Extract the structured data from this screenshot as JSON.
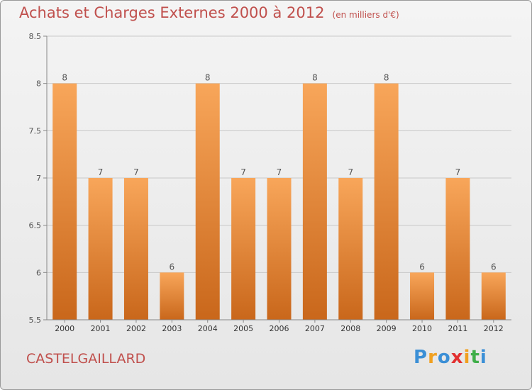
{
  "title": "Achats et Charges Externes 2000 à 2012",
  "subtitle": "(en milliers d'€)",
  "commune": "CASTELGAILLARD",
  "logo": {
    "letters": [
      "P",
      "r",
      "o",
      "x",
      "i",
      "t",
      "i"
    ],
    "colors": [
      "#3b8fd6",
      "#f0a020",
      "#3b8fd6",
      "#e23030",
      "#f0a020",
      "#3fae49",
      "#3b8fd6"
    ]
  },
  "colors": {
    "bar_top": "#f8a65a",
    "bar_bottom": "#c9671b",
    "grid": "#c8c8c8",
    "text": "#555555"
  },
  "chart_data": {
    "type": "bar",
    "title": "Achats et Charges Externes 2000 à 2012",
    "subtitle": "(en milliers d'€)",
    "categories": [
      "2000",
      "2001",
      "2002",
      "2003",
      "2004",
      "2005",
      "2006",
      "2007",
      "2008",
      "2009",
      "2010",
      "2011",
      "2012"
    ],
    "values": [
      8,
      7,
      7,
      6,
      8,
      7,
      7,
      8,
      7,
      8,
      6,
      7,
      6
    ],
    "data_labels": [
      "8",
      "7",
      "7",
      "6",
      "8",
      "7",
      "7",
      "8",
      "7",
      "8",
      "6",
      "7",
      "6"
    ],
    "ylim": [
      5.5,
      8.5
    ],
    "yticks": [
      "5.5",
      "6",
      "6.5",
      "7",
      "7.5",
      "8",
      "8.5"
    ],
    "ytick_values": [
      5.5,
      6,
      6.5,
      7,
      7.5,
      8,
      8.5
    ],
    "grid": true,
    "xlabel": "",
    "ylabel": ""
  }
}
